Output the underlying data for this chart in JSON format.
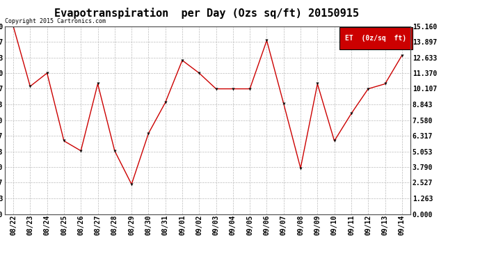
{
  "title": "Evapotranspiration  per Day (Ozs sq/ft) 20150915",
  "copyright": "Copyright 2015 Cartronics.com",
  "legend_label": "ET  (0z/sq  ft)",
  "dates": [
    "08/22",
    "08/23",
    "08/24",
    "08/25",
    "08/26",
    "08/27",
    "08/28",
    "08/29",
    "08/30",
    "08/31",
    "09/01",
    "09/02",
    "09/03",
    "09/04",
    "09/05",
    "09/06",
    "09/07",
    "09/08",
    "09/09",
    "09/10",
    "09/11",
    "09/12",
    "09/13",
    "09/14"
  ],
  "values": [
    15.16,
    10.3,
    11.37,
    5.9,
    5.1,
    10.5,
    5.1,
    2.4,
    6.5,
    9.0,
    12.4,
    11.37,
    10.1,
    10.1,
    10.1,
    14.0,
    8.9,
    3.7,
    10.5,
    5.9,
    8.1,
    10.1,
    10.5,
    12.8
  ],
  "yticks": [
    0.0,
    1.263,
    2.527,
    3.79,
    5.053,
    6.317,
    7.58,
    8.843,
    10.107,
    11.37,
    12.633,
    13.897,
    15.16
  ],
  "line_color": "#cc0000",
  "marker_color": "#111111",
  "background_color": "#ffffff",
  "grid_color": "#bbbbbb",
  "legend_bg": "#cc0000",
  "legend_text_color": "#ffffff",
  "copyright_color": "#000000",
  "ylim": [
    0.0,
    15.16
  ],
  "title_fontsize": 11,
  "tick_fontsize": 7,
  "copyright_fontsize": 6,
  "legend_fontsize": 7
}
